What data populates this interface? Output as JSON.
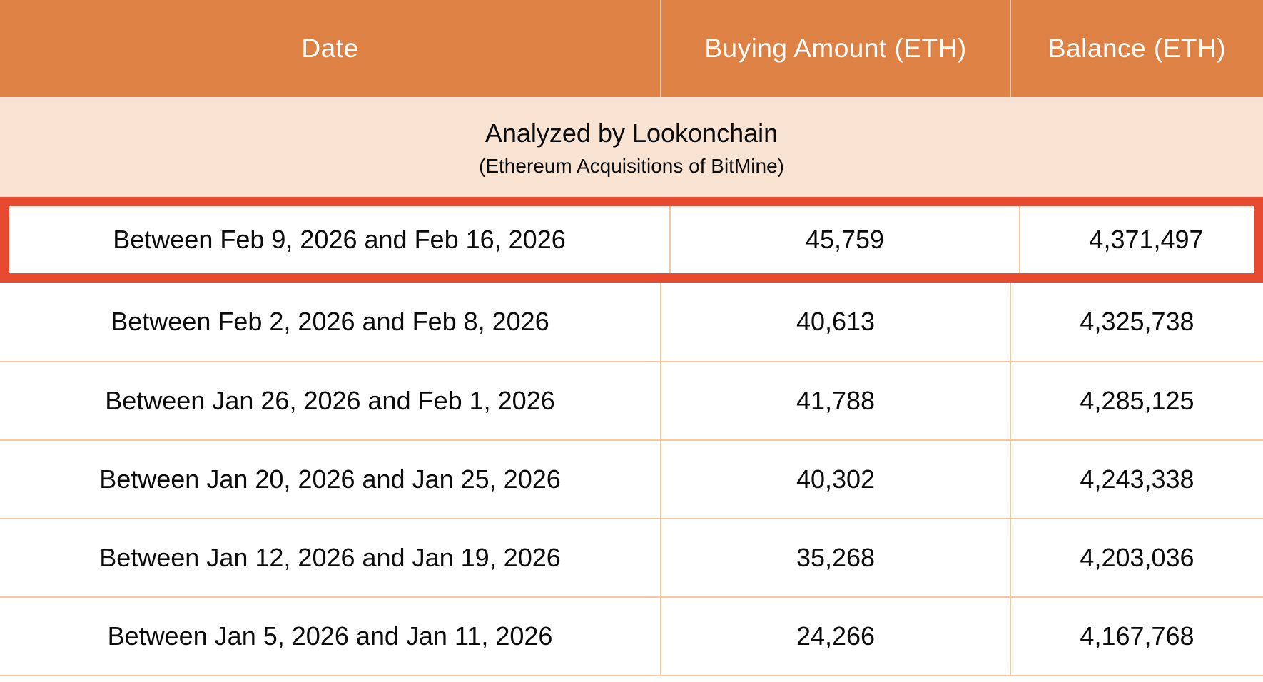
{
  "table": {
    "columns": [
      {
        "label": "Date"
      },
      {
        "label": "Buying Amount (ETH)"
      },
      {
        "label": "Balance (ETH)"
      }
    ],
    "banner": {
      "title": "Analyzed by Lookonchain",
      "subtitle": "(Ethereum Acquisitions of BitMine)"
    },
    "rows": [
      {
        "date": "Between Feb 9, 2026 and Feb 16, 2026",
        "buying_amount": "45,759",
        "balance": "4,371,497",
        "highlighted": true
      },
      {
        "date": "Between Feb 2, 2026 and Feb 8, 2026",
        "buying_amount": "40,613",
        "balance": "4,325,738",
        "highlighted": false
      },
      {
        "date": "Between Jan 26, 2026 and Feb 1, 2026",
        "buying_amount": "41,788",
        "balance": "4,285,125",
        "highlighted": false
      },
      {
        "date": "Between Jan 20, 2026 and Jan 25, 2026",
        "buying_amount": "40,302",
        "balance": "4,243,338",
        "highlighted": false
      },
      {
        "date": "Between Jan 12, 2026 and Jan 19, 2026",
        "buying_amount": "35,268",
        "balance": "4,203,036",
        "highlighted": false
      },
      {
        "date": "Between Jan 5, 2026 and Jan 11, 2026",
        "buying_amount": "24,266",
        "balance": "4,167,768",
        "highlighted": false
      }
    ],
    "colors": {
      "header_bg": "#DD8144",
      "header_text": "#FFFFFF",
      "banner_bg": "#F8E3D3",
      "grid_line": "#F4C79E",
      "highlight_border": "#E84A31",
      "body_text": "#0B0B0B"
    }
  },
  "chart_data": {
    "type": "table",
    "title": "Analyzed by Lookonchain",
    "subtitle": "(Ethereum Acquisitions of BitMine)",
    "columns": [
      "Date",
      "Buying Amount (ETH)",
      "Balance (ETH)"
    ],
    "rows": [
      [
        "Between Feb 9, 2026 and Feb 16, 2026",
        45759,
        4371497
      ],
      [
        "Between Feb 2, 2026 and Feb 8, 2026",
        40613,
        4325738
      ],
      [
        "Between Jan 26, 2026 and Feb 1, 2026",
        41788,
        4285125
      ],
      [
        "Between Jan 20, 2026 and Jan 25, 2026",
        40302,
        4243338
      ],
      [
        "Between Jan 12, 2026 and Jan 19, 2026",
        35268,
        4203036
      ],
      [
        "Between Jan 5, 2026 and Jan 11, 2026",
        24266,
        4167768
      ]
    ],
    "highlighted_row_index": 0,
    "layout": {
      "grid": true,
      "header_position": "top"
    }
  }
}
